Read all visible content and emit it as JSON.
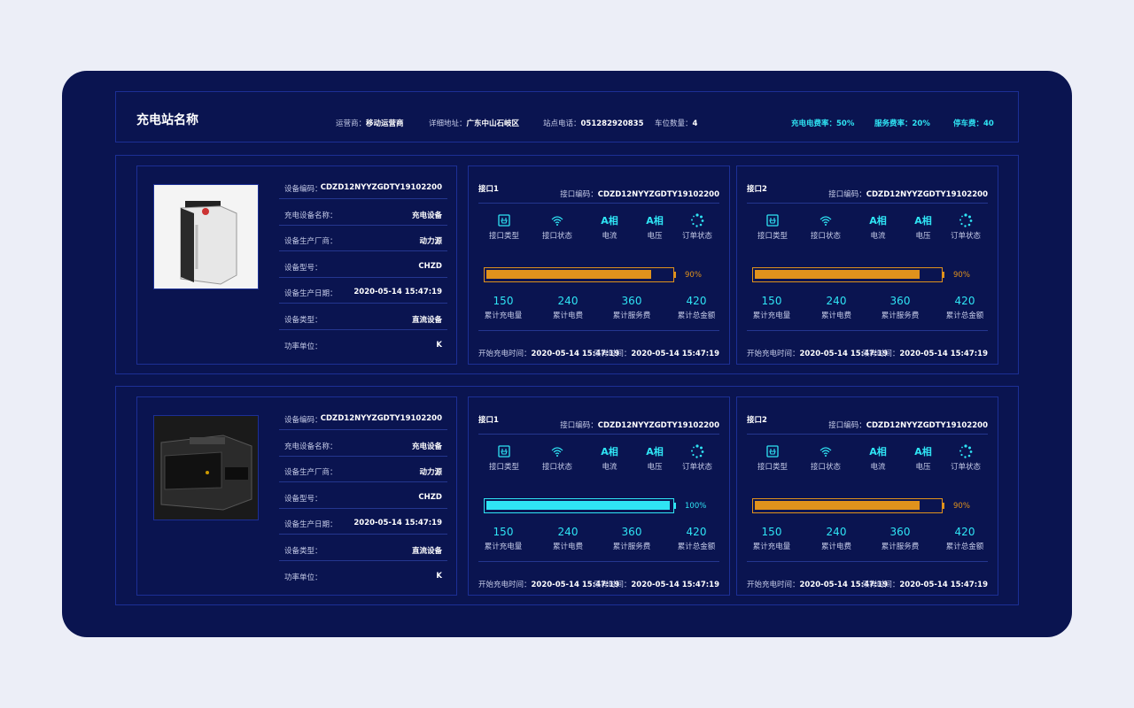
{
  "header": {
    "title": "充电站名称",
    "fields": [
      {
        "label": "运营商：",
        "value": "移动运营商"
      },
      {
        "label": "详细地址：",
        "value": "广东中山石岐区"
      },
      {
        "label": "站点电话：",
        "value": "051282920835"
      },
      {
        "label": "车位数量：",
        "value": "4"
      }
    ],
    "rates": [
      {
        "label": "充电电费率：",
        "value": "50%"
      },
      {
        "label": "服务费率：",
        "value": "20%"
      },
      {
        "label": "停车费：",
        "value": "40"
      }
    ]
  },
  "stations": [
    {
      "device": {
        "rows": [
          {
            "label": "设备编码：",
            "value": "CDZD12NYYZGDTY19102200"
          },
          {
            "label": "充电设备名称：",
            "value": "充电设备"
          },
          {
            "label": "设备生产厂商：",
            "value": "动力源"
          },
          {
            "label": "设备型号：",
            "value": "CHZD"
          },
          {
            "label": "设备生产日期：",
            "value": "2020-05-14 15:47:19"
          },
          {
            "label": "设备类型：",
            "value": "直流设备"
          },
          {
            "label": "功率单位：",
            "value": "K"
          }
        ]
      },
      "ports": [
        {
          "name": "接口1",
          "code_label": "接口编码：",
          "code": "CDZD12NYYZGDTY19102200",
          "indicators": [
            {
              "label": "接口类型"
            },
            {
              "label": "接口状态"
            },
            {
              "symbol": "A相",
              "label": "电流"
            },
            {
              "symbol": "A相",
              "label": "电压"
            },
            {
              "label": "订单状态"
            }
          ],
          "charge": {
            "value": 90,
            "label": "90%",
            "color": "#e0921c"
          },
          "stats": [
            {
              "value": "150",
              "label": "累计充电量"
            },
            {
              "value": "240",
              "label": "累计电费"
            },
            {
              "value": "360",
              "label": "累计服务费"
            },
            {
              "value": "420",
              "label": "累计总金额"
            }
          ],
          "times": [
            {
              "label": "开始充电时间：",
              "value": "2020-05-14 15:47:19"
            },
            {
              "label": "采样时间：",
              "value": "2020-05-14 15:47:19"
            }
          ]
        },
        {
          "name": "接口2",
          "code_label": "接口编码：",
          "code": "CDZD12NYYZGDTY19102200",
          "indicators": [
            {
              "label": "接口类型"
            },
            {
              "label": "接口状态"
            },
            {
              "symbol": "A相",
              "label": "电流"
            },
            {
              "symbol": "A相",
              "label": "电压"
            },
            {
              "label": "订单状态"
            }
          ],
          "charge": {
            "value": 90,
            "label": "90%",
            "color": "#e0921c"
          },
          "stats": [
            {
              "value": "150",
              "label": "累计充电量"
            },
            {
              "value": "240",
              "label": "累计电费"
            },
            {
              "value": "360",
              "label": "累计服务费"
            },
            {
              "value": "420",
              "label": "累计总金额"
            }
          ],
          "times": [
            {
              "label": "开始充电时间：",
              "value": "2020-05-14 15:47:19"
            },
            {
              "label": "采样时间：",
              "value": "2020-05-14 15:47:19"
            }
          ]
        }
      ]
    },
    {
      "device": {
        "rows": [
          {
            "label": "设备编码：",
            "value": "CDZD12NYYZGDTY19102200"
          },
          {
            "label": "充电设备名称：",
            "value": "充电设备"
          },
          {
            "label": "设备生产厂商：",
            "value": "动力源"
          },
          {
            "label": "设备型号：",
            "value": "CHZD"
          },
          {
            "label": "设备生产日期：",
            "value": "2020-05-14 15:47:19"
          },
          {
            "label": "设备类型：",
            "value": "直流设备"
          },
          {
            "label": "功率单位：",
            "value": "K"
          }
        ]
      },
      "ports": [
        {
          "name": "接口1",
          "code_label": "接口编码：",
          "code": "CDZD12NYYZGDTY19102200",
          "indicators": [
            {
              "label": "接口类型"
            },
            {
              "label": "接口状态"
            },
            {
              "symbol": "A相",
              "label": "电流"
            },
            {
              "symbol": "A相",
              "label": "电压"
            },
            {
              "label": "订单状态"
            }
          ],
          "charge": {
            "value": 100,
            "label": "100%",
            "color": "#2fe4f4"
          },
          "stats": [
            {
              "value": "150",
              "label": "累计充电量"
            },
            {
              "value": "240",
              "label": "累计电费"
            },
            {
              "value": "360",
              "label": "累计服务费"
            },
            {
              "value": "420",
              "label": "累计总金额"
            }
          ],
          "times": [
            {
              "label": "开始充电时间：",
              "value": "2020-05-14 15:47:19"
            },
            {
              "label": "采样时间：",
              "value": "2020-05-14 15:47:19"
            }
          ]
        },
        {
          "name": "接口2",
          "code_label": "接口编码：",
          "code": "CDZD12NYYZGDTY19102200",
          "indicators": [
            {
              "label": "接口类型"
            },
            {
              "label": "接口状态"
            },
            {
              "symbol": "A相",
              "label": "电流"
            },
            {
              "symbol": "A相",
              "label": "电压"
            },
            {
              "label": "订单状态"
            }
          ],
          "charge": {
            "value": 90,
            "label": "90%",
            "color": "#e0921c"
          },
          "stats": [
            {
              "value": "150",
              "label": "累计充电量"
            },
            {
              "value": "240",
              "label": "累计电费"
            },
            {
              "value": "360",
              "label": "累计服务费"
            },
            {
              "value": "420",
              "label": "累计总金额"
            }
          ],
          "times": [
            {
              "label": "开始充电时间：",
              "value": "2020-05-14 15:47:19"
            },
            {
              "label": "采样时间：",
              "value": "2020-05-14 15:47:19"
            }
          ]
        }
      ]
    }
  ]
}
